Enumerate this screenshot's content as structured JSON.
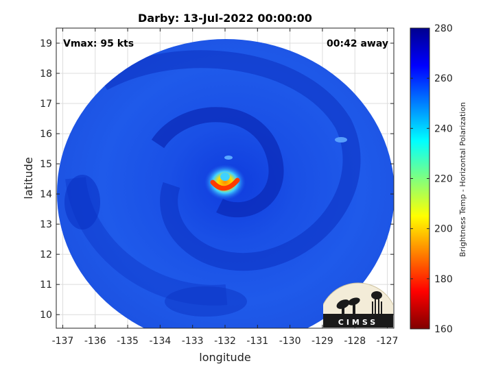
{
  "chart_data": {
    "type": "heatmap",
    "title": "Darby: 13-Jul-2022 00:00:00",
    "xlabel": "longitude",
    "ylabel": "latitude",
    "xlim": [
      -137.2,
      -126.8
    ],
    "ylim": [
      9.55,
      19.5
    ],
    "x_ticks": [
      -137,
      -136,
      -135,
      -134,
      -133,
      -132,
      -131,
      -130,
      -129,
      -128,
      -127
    ],
    "y_ticks": [
      10,
      11,
      12,
      13,
      14,
      15,
      16,
      17,
      18,
      19
    ],
    "grid": true,
    "annotations": {
      "vmax": "Vmax: 95 kts",
      "time_offset": "00:42 away"
    },
    "colorbar": {
      "label": "Brightness Temp - Horizontal Polarization",
      "range": [
        160,
        280
      ],
      "ticks": [
        160,
        180,
        200,
        220,
        240,
        260,
        280
      ],
      "colormap": "jet",
      "colors": [
        "#800000",
        "#ff0000",
        "#ffff00",
        "#00ffff",
        "#0000ff",
        "#00008f"
      ]
    },
    "swath": {
      "center_lon": -132.0,
      "center_lat": 14.5,
      "radius_deg": 5.2,
      "background_tb": 262
    },
    "storm_eye": {
      "lon": -132.0,
      "lat": 14.3,
      "min_tb": 195,
      "eye_tb": 235
    },
    "logo": {
      "text": "CIMSS"
    }
  }
}
